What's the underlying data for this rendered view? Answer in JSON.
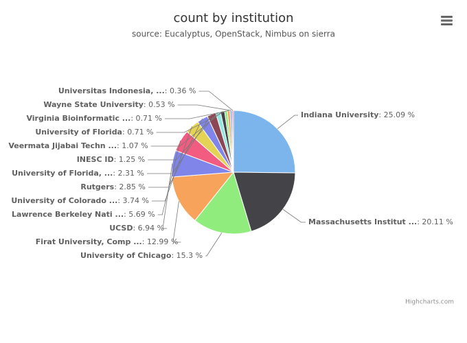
{
  "chart_data": {
    "type": "pie",
    "title": "count by institution",
    "subtitle": "source: Eucalyptus, OpenStack, Nimbus on sierra",
    "categories": [
      "Indiana University",
      "Massachusetts Institut ...",
      "University of Chicago",
      "Firat University, Comp ...",
      "UCSD",
      "Lawrence Berkeley Nati ...",
      "University of Colorado ...",
      "Rutgers",
      "University of Florida, ...",
      "INESC ID",
      "Veermata Jijabai Techn ...",
      "University of Florida",
      "Virginia Bioinformatic ...",
      "Wayne State University",
      "Universitas Indonesia, ..."
    ],
    "values": [
      25.09,
      20.11,
      15.3,
      12.99,
      6.94,
      5.69,
      3.74,
      2.85,
      2.31,
      1.25,
      1.07,
      0.71,
      0.71,
      0.53,
      0.36
    ],
    "value_labels": [
      "25.09 %",
      "20.11 %",
      "15.3 %",
      "12.99 %",
      "6.94 %",
      "5.69 %",
      "3.74 %",
      "2.85 %",
      "2.31 %",
      "1.25 %",
      "1.07 %",
      "0.71 %",
      "0.71 %",
      "0.53 %",
      "0.36 %"
    ],
    "label_separator": ": ",
    "colors": [
      "#7cb5ec",
      "#434348",
      "#90ed7d",
      "#f7a35c",
      "#8085e9",
      "#f15c80",
      "#e4d354",
      "#8085e9",
      "#8d4653",
      "#91e8e1",
      "#434348",
      "#90ed7d",
      "#f7a35c",
      "#7cb5ec",
      "#f15c80"
    ],
    "credits": "Highcharts.com"
  }
}
